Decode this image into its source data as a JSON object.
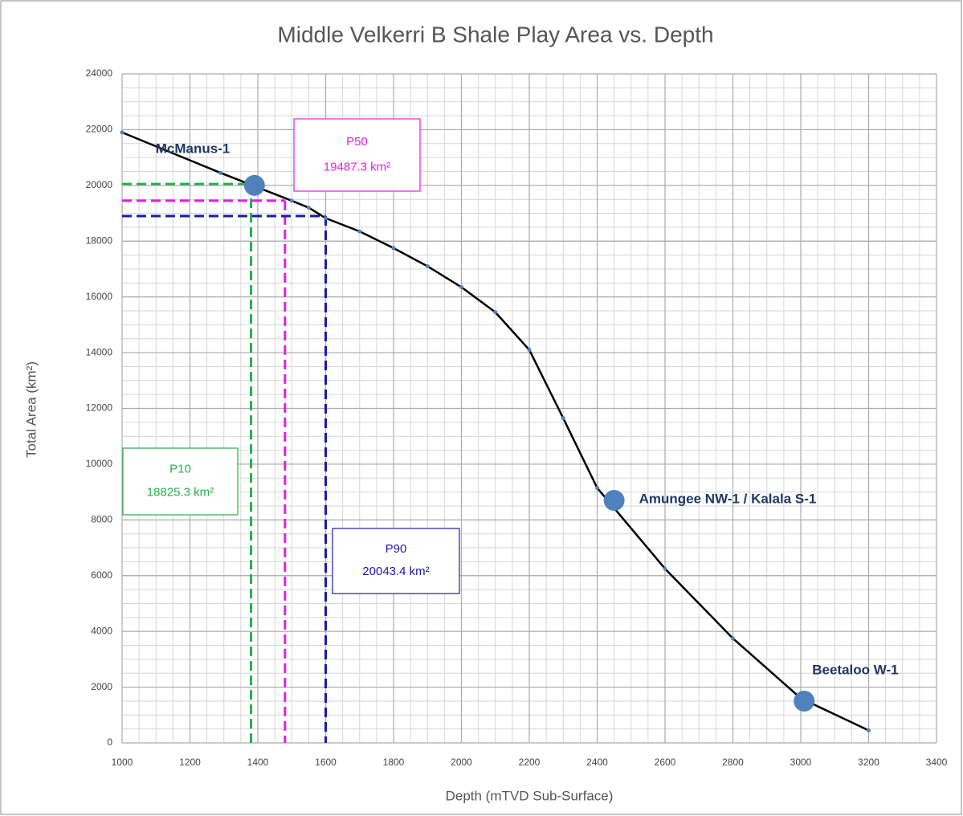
{
  "chart_data": {
    "type": "line",
    "title": "Middle Velkerri B Shale Play Area vs. Depth",
    "x_label": "Depth (mTVD Sub-Surface)",
    "y_label": "Total Area (km²)",
    "x": [
      1000,
      1290,
      1500,
      1550,
      1600,
      1700,
      1800,
      1900,
      2000,
      2100,
      2200,
      2300,
      2400,
      2600,
      2800,
      3000,
      3200
    ],
    "series": [
      {
        "color": "#000000",
        "values": [
          21900,
          20450,
          19450,
          19200,
          18825,
          18350,
          17750,
          17100,
          16350,
          15450,
          14100,
          11650,
          9150,
          6250,
          3750,
          1600,
          450
        ]
      }
    ],
    "xlim": [
      1000,
      3400
    ],
    "ylim": [
      0,
      24000
    ],
    "xticks": [
      1000,
      1200,
      1400,
      1600,
      1800,
      2000,
      2200,
      2400,
      2600,
      2800,
      3000,
      3200,
      3400
    ],
    "yticks": [
      0,
      2000,
      4000,
      6000,
      8000,
      10000,
      12000,
      14000,
      16000,
      18000,
      20000,
      22000,
      24000
    ],
    "grid": true,
    "minor_grid": {
      "x": 50,
      "y": 500
    },
    "wells": [
      {
        "label": "McManus-1",
        "x": 1390,
        "y": 20000
      },
      {
        "label": "Amungee NW-1 / Kalala S-1",
        "x": 2450,
        "y": 8700
      },
      {
        "label": "Beetaloo W-1",
        "x": 3010,
        "y": 1500
      }
    ],
    "well_color": "#4f81bd",
    "percentiles": [
      {
        "label": "P10",
        "value_text": "18825.3  km²",
        "color": "#22b14c",
        "x": 1380,
        "y": 20050
      },
      {
        "label": "P50",
        "value_text": "19487.3 km²",
        "color": "#e020e0",
        "x": 1480,
        "y": 19450
      },
      {
        "label": "P90",
        "value_text": "20043.4 km²",
        "color": "#1a1aa8",
        "x": 1600,
        "y": 18900
      }
    ]
  }
}
